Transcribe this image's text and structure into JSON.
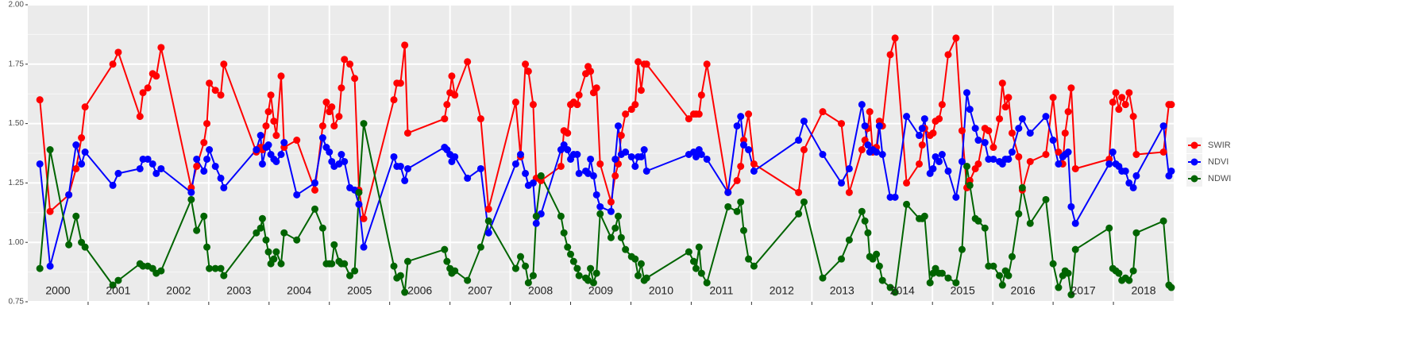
{
  "chart_data": {
    "type": "line",
    "x": [
      2000.2,
      2000.37,
      2000.68,
      2000.8,
      2000.89,
      2000.95,
      2001.41,
      2001.5,
      2001.86,
      2001.91,
      2001.99,
      2002.07,
      2002.13,
      2002.21,
      2002.71,
      2002.8,
      2002.92,
      2002.97,
      2003.01,
      2003.11,
      2003.2,
      2003.25,
      2003.79,
      2003.86,
      2003.89,
      2003.95,
      2003.99,
      2004.03,
      2004.08,
      2004.12,
      2004.2,
      2004.25,
      2004.46,
      2004.76,
      2004.89,
      2004.95,
      2005.0,
      2005.04,
      2005.08,
      2005.16,
      2005.2,
      2005.25,
      2005.34,
      2005.42,
      2005.49,
      2005.57,
      2006.07,
      2006.12,
      2006.18,
      2006.25,
      2006.3,
      2006.91,
      2006.95,
      2007.0,
      2007.03,
      2007.08,
      2007.29,
      2007.51,
      2007.64,
      2008.09,
      2008.17,
      2008.25,
      2008.3,
      2008.38,
      2008.43,
      2008.51,
      2008.84,
      2008.89,
      2008.95,
      2009.0,
      2009.05,
      2009.11,
      2009.14,
      2009.25,
      2009.29,
      2009.33,
      2009.38,
      2009.43,
      2009.49,
      2009.67,
      2009.74,
      2009.79,
      2009.84,
      2009.91,
      2010.01,
      2010.07,
      2010.12,
      2010.17,
      2010.22,
      2010.26,
      2010.96,
      2011.04,
      2011.08,
      2011.13,
      2011.17,
      2011.26,
      2011.61,
      2011.76,
      2011.82,
      2011.87,
      2011.95,
      2012.04,
      2012.78,
      2012.87,
      2013.18,
      2013.49,
      2013.62,
      2013.83,
      2013.88,
      2013.93,
      2013.96,
      2014.01,
      2014.07,
      2014.12,
      2014.17,
      2014.3,
      2014.38,
      2014.57,
      2014.78,
      2014.83,
      2014.87,
      2014.96,
      2015.01,
      2015.05,
      2015.11,
      2015.16,
      2015.26,
      2015.39,
      2015.49,
      2015.57,
      2015.62,
      2015.71,
      2015.76,
      2015.87,
      2015.93,
      2016.01,
      2016.11,
      2016.16,
      2016.21,
      2016.26,
      2016.32,
      2016.43,
      2016.49,
      2016.62,
      2016.88,
      2017.0,
      2017.09,
      2017.16,
      2017.2,
      2017.25,
      2017.3,
      2017.37,
      2017.93,
      2017.99,
      2018.04,
      2018.09,
      2018.14,
      2018.2,
      2018.26,
      2018.33,
      2018.38,
      2018.83,
      2018.92,
      2018.96
    ],
    "series": [
      {
        "name": "SWIR",
        "color": "#ff0000",
        "values": [
          1.6,
          1.13,
          1.2,
          1.31,
          1.44,
          1.57,
          1.75,
          1.8,
          1.53,
          1.63,
          1.65,
          1.71,
          1.7,
          1.82,
          1.23,
          1.32,
          1.42,
          1.5,
          1.67,
          1.64,
          1.62,
          1.75,
          1.38,
          1.4,
          1.39,
          1.49,
          1.55,
          1.62,
          1.51,
          1.45,
          1.7,
          1.4,
          1.43,
          1.22,
          1.49,
          1.59,
          1.55,
          1.57,
          1.49,
          1.53,
          1.65,
          1.77,
          1.75,
          1.69,
          1.22,
          1.1,
          1.6,
          1.67,
          1.67,
          1.83,
          1.46,
          1.52,
          1.58,
          1.63,
          1.7,
          1.62,
          1.76,
          1.52,
          1.14,
          1.59,
          1.36,
          1.75,
          1.72,
          1.58,
          1.27,
          1.26,
          1.32,
          1.47,
          1.46,
          1.58,
          1.59,
          1.58,
          1.62,
          1.71,
          1.74,
          1.72,
          1.63,
          1.65,
          1.33,
          1.17,
          1.28,
          1.33,
          1.45,
          1.54,
          1.56,
          1.58,
          1.76,
          1.64,
          1.75,
          1.75,
          1.52,
          1.54,
          1.54,
          1.54,
          1.62,
          1.75,
          1.21,
          1.26,
          1.32,
          1.43,
          1.54,
          1.33,
          1.21,
          1.39,
          1.55,
          1.5,
          1.21,
          1.39,
          1.43,
          1.48,
          1.55,
          1.38,
          1.4,
          1.51,
          1.49,
          1.79,
          1.86,
          1.25,
          1.33,
          1.41,
          1.48,
          1.45,
          1.46,
          1.51,
          1.52,
          1.58,
          1.79,
          1.86,
          1.47,
          1.23,
          1.26,
          1.31,
          1.33,
          1.48,
          1.47,
          1.4,
          1.52,
          1.67,
          1.57,
          1.61,
          1.46,
          1.36,
          1.22,
          1.34,
          1.37,
          1.61,
          1.38,
          1.33,
          1.46,
          1.55,
          1.65,
          1.31,
          1.35,
          1.59,
          1.63,
          1.56,
          1.61,
          1.58,
          1.63,
          1.53,
          1.37,
          1.38,
          1.58,
          1.58
        ]
      },
      {
        "name": "NDVI",
        "color": "#0000ff",
        "values": [
          1.33,
          0.9,
          1.2,
          1.41,
          1.33,
          1.38,
          1.24,
          1.29,
          1.31,
          1.35,
          1.35,
          1.33,
          1.29,
          1.31,
          1.21,
          1.35,
          1.3,
          1.35,
          1.39,
          1.32,
          1.27,
          1.23,
          1.39,
          1.45,
          1.33,
          1.4,
          1.41,
          1.37,
          1.35,
          1.34,
          1.37,
          1.42,
          1.2,
          1.25,
          1.44,
          1.4,
          1.38,
          1.34,
          1.32,
          1.33,
          1.37,
          1.34,
          1.23,
          1.22,
          1.16,
          0.98,
          1.36,
          1.32,
          1.32,
          1.26,
          1.31,
          1.4,
          1.39,
          1.37,
          1.34,
          1.36,
          1.27,
          1.31,
          1.04,
          1.33,
          1.37,
          1.29,
          1.24,
          1.25,
          1.08,
          1.12,
          1.39,
          1.41,
          1.39,
          1.35,
          1.37,
          1.37,
          1.29,
          1.3,
          1.29,
          1.35,
          1.28,
          1.2,
          1.15,
          1.13,
          1.35,
          1.49,
          1.37,
          1.38,
          1.36,
          1.32,
          1.36,
          1.36,
          1.39,
          1.3,
          1.37,
          1.38,
          1.36,
          1.39,
          1.37,
          1.35,
          1.21,
          1.49,
          1.53,
          1.41,
          1.39,
          1.3,
          1.43,
          1.51,
          1.37,
          1.25,
          1.31,
          1.58,
          1.49,
          1.41,
          1.38,
          1.39,
          1.38,
          1.49,
          1.37,
          1.19,
          1.19,
          1.53,
          1.45,
          1.48,
          1.52,
          1.29,
          1.31,
          1.36,
          1.34,
          1.37,
          1.3,
          1.19,
          1.34,
          1.63,
          1.56,
          1.48,
          1.43,
          1.42,
          1.35,
          1.35,
          1.34,
          1.33,
          1.35,
          1.35,
          1.38,
          1.48,
          1.52,
          1.46,
          1.53,
          1.43,
          1.33,
          1.36,
          1.37,
          1.38,
          1.15,
          1.08,
          1.33,
          1.38,
          1.33,
          1.32,
          1.3,
          1.3,
          1.25,
          1.23,
          1.28,
          1.49,
          1.28,
          1.3
        ]
      },
      {
        "name": "NDWI",
        "color": "#006400",
        "values": [
          0.89,
          1.39,
          0.99,
          1.11,
          1.0,
          0.98,
          0.82,
          0.84,
          0.91,
          0.9,
          0.9,
          0.89,
          0.87,
          0.88,
          1.18,
          1.05,
          1.11,
          0.98,
          0.89,
          0.89,
          0.89,
          0.86,
          1.04,
          1.06,
          1.1,
          1.01,
          0.96,
          0.91,
          0.93,
          0.96,
          0.91,
          1.04,
          1.01,
          1.14,
          1.06,
          0.91,
          0.91,
          0.91,
          0.99,
          0.92,
          0.91,
          0.91,
          0.86,
          0.88,
          1.21,
          1.5,
          0.9,
          0.85,
          0.86,
          0.79,
          0.92,
          0.97,
          0.92,
          0.89,
          0.87,
          0.88,
          0.84,
          0.98,
          1.09,
          0.89,
          0.94,
          0.9,
          0.83,
          0.86,
          1.11,
          1.28,
          1.11,
          1.04,
          0.98,
          0.95,
          0.92,
          0.89,
          0.86,
          0.85,
          0.84,
          0.89,
          0.83,
          0.87,
          1.12,
          1.02,
          1.06,
          1.11,
          1.02,
          0.97,
          0.94,
          0.93,
          0.86,
          0.91,
          0.84,
          0.85,
          0.96,
          0.92,
          0.89,
          0.98,
          0.87,
          0.83,
          1.15,
          1.13,
          1.17,
          1.05,
          0.93,
          0.9,
          1.12,
          1.17,
          0.85,
          0.93,
          1.01,
          1.13,
          1.09,
          1.04,
          0.94,
          0.93,
          0.95,
          0.9,
          0.84,
          0.81,
          0.79,
          1.16,
          1.1,
          1.1,
          1.11,
          0.83,
          0.87,
          0.89,
          0.87,
          0.87,
          0.85,
          0.83,
          0.97,
          1.32,
          1.24,
          1.1,
          1.09,
          1.06,
          0.9,
          0.9,
          0.86,
          0.82,
          0.88,
          0.86,
          0.94,
          1.12,
          1.23,
          1.08,
          1.18,
          0.91,
          0.81,
          0.86,
          0.88,
          0.87,
          0.78,
          0.97,
          1.06,
          0.89,
          0.88,
          0.87,
          0.84,
          0.85,
          0.84,
          0.88,
          1.04,
          1.09,
          0.82,
          0.81
        ]
      }
    ],
    "xlim": [
      2000,
      2019
    ],
    "xticks": [
      2001,
      2002,
      2003,
      2004,
      2005,
      2006,
      2007,
      2008,
      2009,
      2010,
      2011,
      2012,
      2013,
      2014,
      2015,
      2016,
      2017,
      2018
    ],
    "year_labels": [
      2000,
      2001,
      2002,
      2003,
      2004,
      2005,
      2006,
      2007,
      2008,
      2009,
      2010,
      2011,
      2012,
      2013,
      2014,
      2015,
      2016,
      2017,
      2018
    ],
    "ylim": [
      0.75,
      2.0
    ],
    "yticks": [
      {
        "value": 0.75,
        "label": "0.75"
      },
      {
        "value": 1,
        "label": "1.00"
      },
      {
        "value": 1.25,
        "label": "1.25"
      },
      {
        "value": 1.5,
        "label": "1.50"
      },
      {
        "value": 1.75,
        "label": "1.75"
      },
      {
        "value": 2,
        "label": "2.00"
      }
    ],
    "grid": true,
    "legend": "right"
  }
}
